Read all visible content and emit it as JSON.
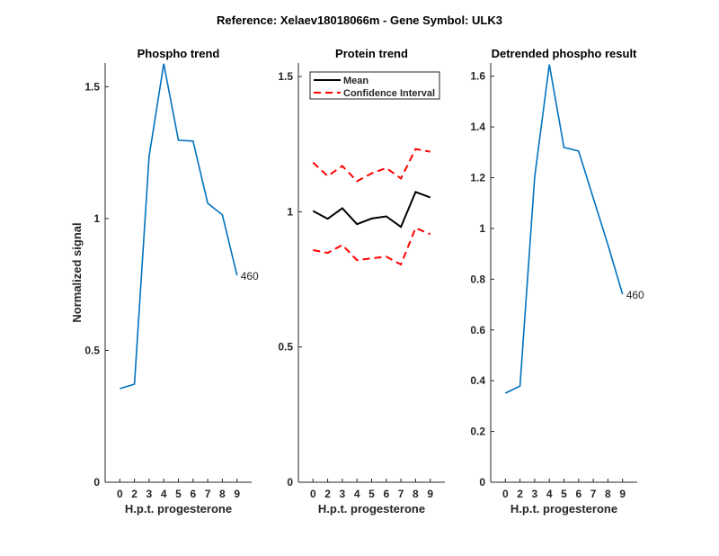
{
  "figure_title": "Reference:  Xelaev18018066m - Gene Symbol:  ULK3",
  "chart_data": [
    {
      "type": "line",
      "title": "Phospho trend",
      "xlabel": "H.p.t. progesterone",
      "ylabel": "Normalized signal",
      "categories": [
        "0",
        "2",
        "3",
        "4",
        "5",
        "6",
        "7",
        "8",
        "9"
      ],
      "ylim": [
        0,
        1.59
      ],
      "yticks": [
        0,
        0.5,
        1,
        1.5
      ],
      "ytick_labels": [
        "0",
        "0.5",
        "1",
        "1.5"
      ],
      "series": [
        {
          "name": "460",
          "color": "#0072BD",
          "values": [
            0.355,
            0.372,
            1.235,
            1.587,
            1.297,
            1.294,
            1.058,
            1.014,
            0.785
          ]
        }
      ],
      "end_label": "460"
    },
    {
      "type": "line",
      "title": "Protein trend",
      "xlabel": "H.p.t. progesterone",
      "categories": [
        "0",
        "2",
        "3",
        "4",
        "5",
        "6",
        "7",
        "8",
        "9"
      ],
      "ylim": [
        0,
        1.55
      ],
      "yticks": [
        0,
        0.5,
        1,
        1.5
      ],
      "ytick_labels": [
        "0",
        "0.5",
        "1",
        "1.5"
      ],
      "legend": {
        "position": "top-left",
        "entries": [
          "Mean",
          "Confidence Interval"
        ]
      },
      "series": [
        {
          "name": "Mean",
          "color": "#000000",
          "dash": false,
          "values": [
            1.003,
            0.974,
            1.013,
            0.954,
            0.975,
            0.983,
            0.944,
            1.073,
            1.053
          ]
        },
        {
          "name": "Confidence Interval (upper)",
          "color": "#FF0000",
          "dash": true,
          "values": [
            1.182,
            1.132,
            1.169,
            1.113,
            1.142,
            1.162,
            1.123,
            1.232,
            1.222
          ]
        },
        {
          "name": "Confidence Interval (lower)",
          "color": "#FF0000",
          "dash": true,
          "values": [
            0.858,
            0.848,
            0.877,
            0.821,
            0.828,
            0.834,
            0.805,
            0.94,
            0.917
          ]
        }
      ]
    },
    {
      "type": "line",
      "title": "Detrended phospho result",
      "xlabel": "H.p.t. progesterone",
      "categories": [
        "0",
        "2",
        "3",
        "4",
        "5",
        "6",
        "7",
        "8",
        "9"
      ],
      "ylim": [
        0,
        1.652
      ],
      "yticks": [
        0,
        0.2,
        0.4,
        0.6,
        0.8,
        1,
        1.2,
        1.4,
        1.6
      ],
      "ytick_labels": [
        "0",
        "0.2",
        "0.4",
        "0.6",
        "0.8",
        "1",
        "1.2",
        "1.4",
        "1.6"
      ],
      "series": [
        {
          "name": "460",
          "color": "#0072BD",
          "values": [
            0.351,
            0.379,
            1.202,
            1.646,
            1.319,
            1.305,
            1.12,
            0.936,
            0.741
          ]
        }
      ],
      "end_label": "460"
    }
  ]
}
